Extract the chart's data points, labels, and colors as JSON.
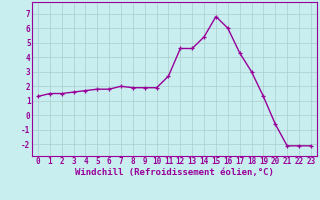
{
  "x": [
    0,
    1,
    2,
    3,
    4,
    5,
    6,
    7,
    8,
    9,
    10,
    11,
    12,
    13,
    14,
    15,
    16,
    17,
    18,
    19,
    20,
    21,
    22,
    23
  ],
  "y": [
    1.3,
    1.5,
    1.5,
    1.6,
    1.7,
    1.8,
    1.8,
    2.0,
    1.9,
    1.9,
    1.9,
    2.7,
    4.6,
    4.6,
    5.4,
    6.8,
    6.0,
    4.3,
    3.0,
    1.3,
    -0.6,
    -2.1,
    -2.1,
    -2.1
  ],
  "line_color": "#990099",
  "marker": "+",
  "marker_size": 3,
  "xlabel": "Windchill (Refroidissement éolien,°C)",
  "xlabel_fontsize": 6.5,
  "xtick_labels": [
    "0",
    "1",
    "2",
    "3",
    "4",
    "5",
    "6",
    "7",
    "8",
    "9",
    "10",
    "11",
    "12",
    "13",
    "14",
    "15",
    "16",
    "17",
    "18",
    "19",
    "20",
    "21",
    "22",
    "23"
  ],
  "ytick_values": [
    -2,
    -1,
    0,
    1,
    2,
    3,
    4,
    5,
    6,
    7
  ],
  "ylim": [
    -2.8,
    7.8
  ],
  "xlim": [
    -0.5,
    23.5
  ],
  "bg_color": "#c8eef0",
  "grid_color": "#aacccc",
  "tick_fontsize": 5.5,
  "line_width": 1.0
}
